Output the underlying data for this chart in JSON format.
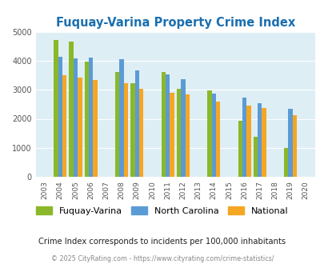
{
  "title": "Fuquay-Varina Property Crime Index",
  "years": [
    2004,
    2005,
    2006,
    2008,
    2009,
    2011,
    2012,
    2014,
    2016,
    2017,
    2019
  ],
  "all_years": [
    2003,
    2004,
    2005,
    2006,
    2007,
    2008,
    2009,
    2010,
    2011,
    2012,
    2013,
    2014,
    2015,
    2016,
    2017,
    2018,
    2019,
    2020
  ],
  "fuquay": [
    4700,
    4650,
    3980,
    3600,
    3230,
    3620,
    3040,
    2970,
    1930,
    1370,
    1000
  ],
  "nc": [
    4130,
    4090,
    4100,
    4050,
    3670,
    3530,
    3360,
    2870,
    2720,
    2540,
    2340
  ],
  "national": [
    3490,
    3430,
    3340,
    3220,
    3030,
    2890,
    2840,
    2580,
    2450,
    2360,
    2120
  ],
  "fuquay_color": "#8ab82a",
  "nc_color": "#5b9bd5",
  "national_color": "#f5a623",
  "bg_color": "#deeef5",
  "title_color": "#1a6faf",
  "subtitle": "Crime Index corresponds to incidents per 100,000 inhabitants",
  "footer": "© 2025 CityRating.com - https://www.cityrating.com/crime-statistics/",
  "ylim": [
    0,
    5000
  ],
  "yticks": [
    0,
    1000,
    2000,
    3000,
    4000,
    5000
  ]
}
